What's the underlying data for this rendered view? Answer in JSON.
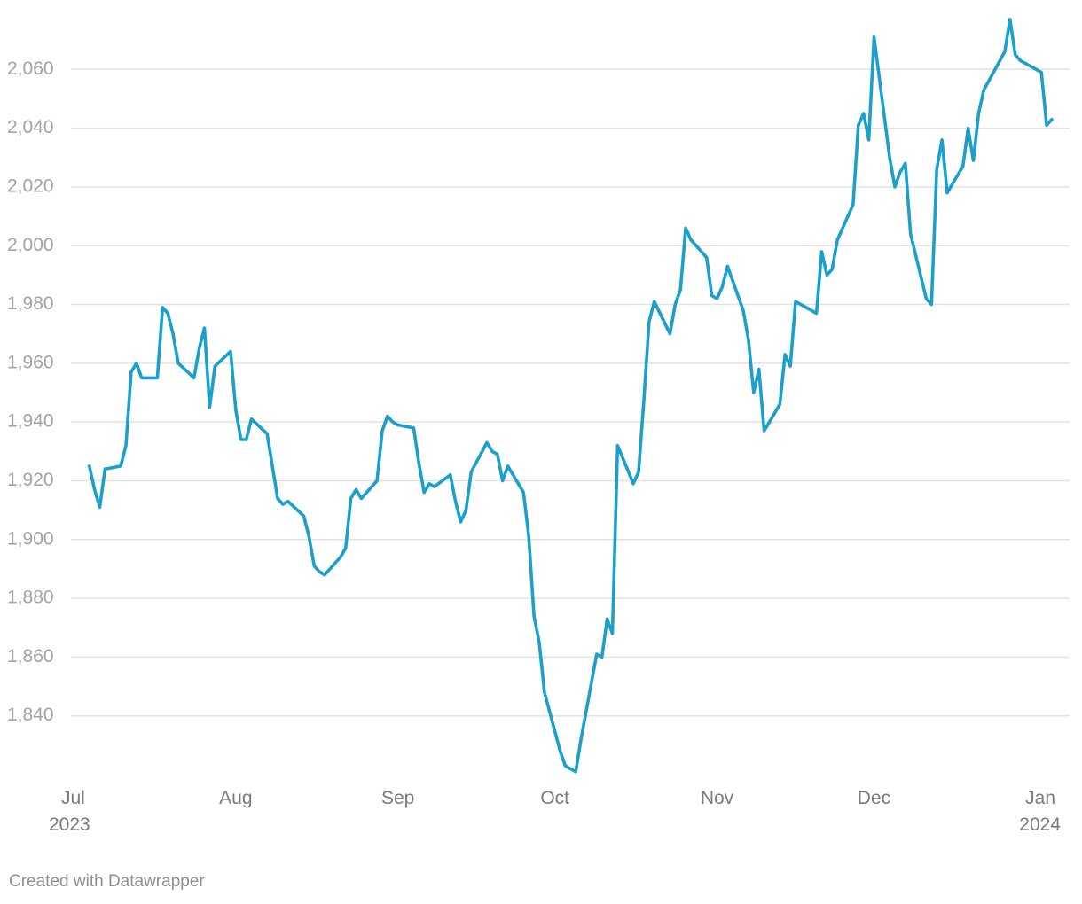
{
  "chart_data": {
    "type": "line",
    "title": "",
    "xlabel": "",
    "ylabel": "",
    "ylim": [
      1820,
      2080
    ],
    "xlim": [
      "2023-07-01",
      "2024-01-04"
    ],
    "grid": true,
    "line_color": "#1ba0cc",
    "y_ticks": [
      1840,
      1860,
      1880,
      1900,
      1920,
      1940,
      1960,
      1980,
      2000,
      2020,
      2040,
      2060
    ],
    "y_tick_labels": [
      "1,840",
      "1,860",
      "1,880",
      "1,900",
      "1,920",
      "1,940",
      "1,960",
      "1,980",
      "2,000",
      "2,020",
      "2,040",
      "2,060"
    ],
    "x_ticks": [
      {
        "date": "2023-07-01",
        "label": "Jul",
        "sublabel": "2023"
      },
      {
        "date": "2023-08-01",
        "label": "Aug",
        "sublabel": ""
      },
      {
        "date": "2023-09-01",
        "label": "Sep",
        "sublabel": ""
      },
      {
        "date": "2023-10-01",
        "label": "Oct",
        "sublabel": ""
      },
      {
        "date": "2023-11-01",
        "label": "Nov",
        "sublabel": ""
      },
      {
        "date": "2023-12-01",
        "label": "Dec",
        "sublabel": ""
      },
      {
        "date": "2024-01-01",
        "label": "Jan",
        "sublabel": "2024"
      }
    ],
    "series": [
      {
        "points": [
          [
            "2023-07-04",
            1925
          ],
          [
            "2023-07-05",
            1917
          ],
          [
            "2023-07-06",
            1911
          ],
          [
            "2023-07-07",
            1924
          ],
          [
            "2023-07-10",
            1925
          ],
          [
            "2023-07-11",
            1932
          ],
          [
            "2023-07-12",
            1957
          ],
          [
            "2023-07-13",
            1960
          ],
          [
            "2023-07-14",
            1955
          ],
          [
            "2023-07-17",
            1955
          ],
          [
            "2023-07-18",
            1979
          ],
          [
            "2023-07-19",
            1977
          ],
          [
            "2023-07-20",
            1970
          ],
          [
            "2023-07-21",
            1960
          ],
          [
            "2023-07-24",
            1955
          ],
          [
            "2023-07-25",
            1965
          ],
          [
            "2023-07-26",
            1972
          ],
          [
            "2023-07-27",
            1945
          ],
          [
            "2023-07-28",
            1959
          ],
          [
            "2023-07-31",
            1964
          ],
          [
            "2023-08-01",
            1944
          ],
          [
            "2023-08-02",
            1934
          ],
          [
            "2023-08-03",
            1934
          ],
          [
            "2023-08-04",
            1941
          ],
          [
            "2023-08-07",
            1936
          ],
          [
            "2023-08-08",
            1925
          ],
          [
            "2023-08-09",
            1914
          ],
          [
            "2023-08-10",
            1912
          ],
          [
            "2023-08-11",
            1913
          ],
          [
            "2023-08-14",
            1908
          ],
          [
            "2023-08-15",
            1901
          ],
          [
            "2023-08-16",
            1891
          ],
          [
            "2023-08-17",
            1889
          ],
          [
            "2023-08-18",
            1888
          ],
          [
            "2023-08-21",
            1894
          ],
          [
            "2023-08-22",
            1897
          ],
          [
            "2023-08-23",
            1914
          ],
          [
            "2023-08-24",
            1917
          ],
          [
            "2023-08-25",
            1914
          ],
          [
            "2023-08-28",
            1920
          ],
          [
            "2023-08-29",
            1937
          ],
          [
            "2023-08-30",
            1942
          ],
          [
            "2023-08-31",
            1940
          ],
          [
            "2023-09-01",
            1939
          ],
          [
            "2023-09-04",
            1938
          ],
          [
            "2023-09-05",
            1926
          ],
          [
            "2023-09-06",
            1916
          ],
          [
            "2023-09-07",
            1919
          ],
          [
            "2023-09-08",
            1918
          ],
          [
            "2023-09-11",
            1922
          ],
          [
            "2023-09-12",
            1913
          ],
          [
            "2023-09-13",
            1906
          ],
          [
            "2023-09-14",
            1910
          ],
          [
            "2023-09-15",
            1923
          ],
          [
            "2023-09-18",
            1933
          ],
          [
            "2023-09-19",
            1930
          ],
          [
            "2023-09-20",
            1929
          ],
          [
            "2023-09-21",
            1920
          ],
          [
            "2023-09-22",
            1925
          ],
          [
            "2023-09-25",
            1916
          ],
          [
            "2023-09-26",
            1901
          ],
          [
            "2023-09-27",
            1874
          ],
          [
            "2023-09-28",
            1865
          ],
          [
            "2023-09-29",
            1848
          ],
          [
            "2023-10-02",
            1828
          ],
          [
            "2023-10-03",
            1823
          ],
          [
            "2023-10-04",
            1822
          ],
          [
            "2023-10-05",
            1821
          ],
          [
            "2023-10-06",
            1832
          ],
          [
            "2023-10-09",
            1861
          ],
          [
            "2023-10-10",
            1860
          ],
          [
            "2023-10-11",
            1873
          ],
          [
            "2023-10-12",
            1868
          ],
          [
            "2023-10-13",
            1932
          ],
          [
            "2023-10-16",
            1919
          ],
          [
            "2023-10-17",
            1923
          ],
          [
            "2023-10-18",
            1947
          ],
          [
            "2023-10-19",
            1974
          ],
          [
            "2023-10-20",
            1981
          ],
          [
            "2023-10-23",
            1970
          ],
          [
            "2023-10-24",
            1980
          ],
          [
            "2023-10-25",
            1985
          ],
          [
            "2023-10-26",
            2006
          ],
          [
            "2023-10-27",
            2002
          ],
          [
            "2023-10-30",
            1996
          ],
          [
            "2023-10-31",
            1983
          ],
          [
            "2023-11-01",
            1982
          ],
          [
            "2023-11-02",
            1986
          ],
          [
            "2023-11-03",
            1993
          ],
          [
            "2023-11-06",
            1978
          ],
          [
            "2023-11-07",
            1968
          ],
          [
            "2023-11-08",
            1950
          ],
          [
            "2023-11-09",
            1958
          ],
          [
            "2023-11-10",
            1937
          ],
          [
            "2023-11-13",
            1946
          ],
          [
            "2023-11-14",
            1963
          ],
          [
            "2023-11-15",
            1959
          ],
          [
            "2023-11-16",
            1981
          ],
          [
            "2023-11-20",
            1977
          ],
          [
            "2023-11-21",
            1998
          ],
          [
            "2023-11-22",
            1990
          ],
          [
            "2023-11-23",
            1992
          ],
          [
            "2023-11-24",
            2002
          ],
          [
            "2023-11-27",
            2014
          ],
          [
            "2023-11-28",
            2041
          ],
          [
            "2023-11-29",
            2045
          ],
          [
            "2023-11-30",
            2036
          ],
          [
            "2023-12-01",
            2071
          ],
          [
            "2023-12-04",
            2030
          ],
          [
            "2023-12-05",
            2020
          ],
          [
            "2023-12-06",
            2025
          ],
          [
            "2023-12-07",
            2028
          ],
          [
            "2023-12-08",
            2004
          ],
          [
            "2023-12-11",
            1982
          ],
          [
            "2023-12-12",
            1980
          ],
          [
            "2023-12-13",
            2026
          ],
          [
            "2023-12-14",
            2036
          ],
          [
            "2023-12-15",
            2018
          ],
          [
            "2023-12-18",
            2027
          ],
          [
            "2023-12-19",
            2040
          ],
          [
            "2023-12-20",
            2029
          ],
          [
            "2023-12-21",
            2045
          ],
          [
            "2023-12-22",
            2053
          ],
          [
            "2023-12-26",
            2066
          ],
          [
            "2023-12-27",
            2077
          ],
          [
            "2023-12-28",
            2065
          ],
          [
            "2023-12-29",
            2063
          ],
          [
            "2024-01-02",
            2059
          ],
          [
            "2024-01-03",
            2041
          ],
          [
            "2024-01-04",
            2043
          ]
        ]
      }
    ]
  },
  "footer": {
    "credit": "Created with Datawrapper"
  }
}
